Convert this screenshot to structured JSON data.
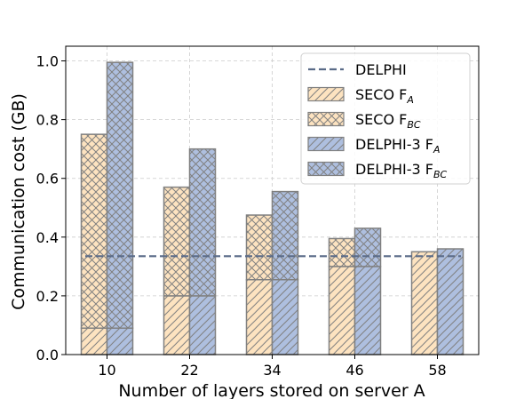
{
  "chart_data": {
    "type": "bar",
    "stacked": true,
    "categories": [
      "10",
      "22",
      "34",
      "46",
      "58"
    ],
    "xlabel": "Number of layers stored on server A",
    "ylabel": "Communication cost (GB)",
    "ylim": [
      0.0,
      1.05
    ],
    "yticks": [
      0.0,
      0.2,
      0.4,
      0.6,
      0.8,
      1.0
    ],
    "ytick_labels": [
      "0.0",
      "0.2",
      "0.4",
      "0.6",
      "0.8",
      "1.0"
    ],
    "grid": true,
    "legend_position": "top-right",
    "reference_line": {
      "name": "DELPHI",
      "value": 0.335,
      "color": "#5a6b88",
      "style": "dashed"
    },
    "groups": [
      {
        "name": "SECO",
        "color": "#fde3c0",
        "components": [
          {
            "name": "SECO F_A",
            "values": [
              0.09,
              0.2,
              0.255,
              0.3,
              0.35
            ],
            "hatch": "diagonal"
          },
          {
            "name": "SECO F_BC",
            "values": [
              0.66,
              0.37,
              0.22,
              0.095,
              0.0
            ],
            "hatch": "cross"
          }
        ]
      },
      {
        "name": "DELPHI-3",
        "color": "#aebfdf",
        "components": [
          {
            "name": "DELPHI-3 F_A",
            "values": [
              0.09,
              0.2,
              0.255,
              0.3,
              0.36
            ],
            "hatch": "diagonal"
          },
          {
            "name": "DELPHI-3 F_BC",
            "values": [
              0.905,
              0.5,
              0.3,
              0.13,
              0.0
            ],
            "hatch": "cross"
          }
        ]
      }
    ],
    "legend": [
      {
        "key": "delphi",
        "base": "DELPHI",
        "sub": "",
        "kind": "line"
      },
      {
        "key": "seco_fa",
        "base": "SECO F",
        "sub": "A",
        "kind": "seco-diag"
      },
      {
        "key": "seco_fbc",
        "base": "SECO F",
        "sub": "BC",
        "kind": "seco-cross"
      },
      {
        "key": "delphi3_fa",
        "base": "DELPHI-3 F",
        "sub": "A",
        "kind": "delphi3-diag"
      },
      {
        "key": "delphi3_fbc",
        "base": "DELPHI-3 F",
        "sub": "BC",
        "kind": "delphi3-cross"
      }
    ]
  }
}
